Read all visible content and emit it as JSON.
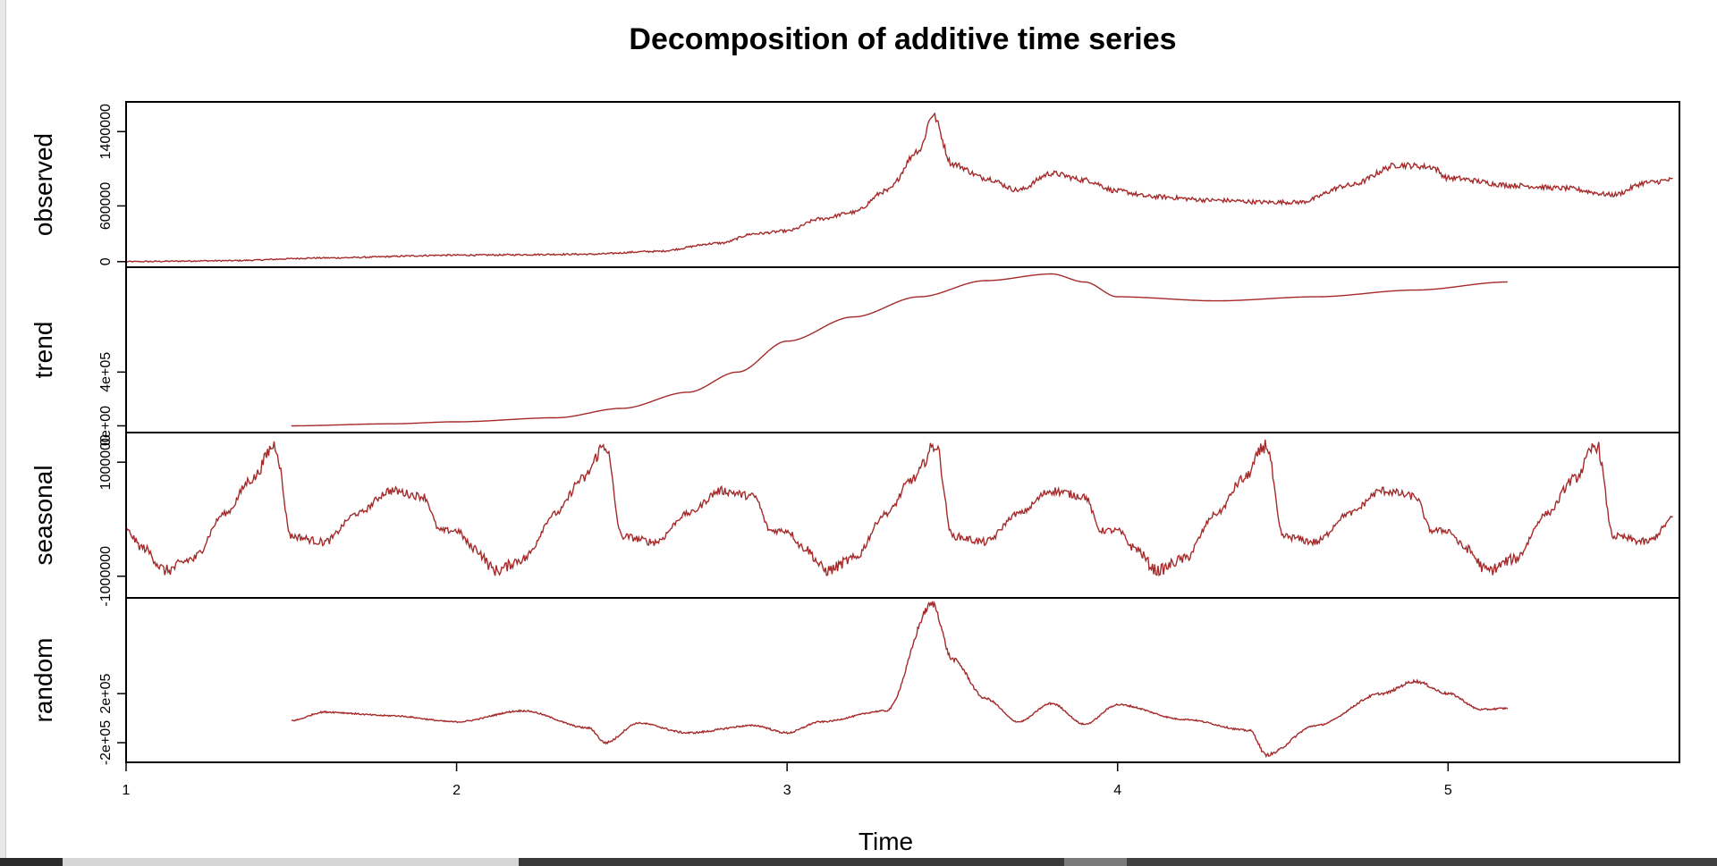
{
  "chart_data": {
    "type": "line",
    "title": "Decomposition of additive time series",
    "xlabel": "Time",
    "xlim": [
      1,
      5.7
    ],
    "x_ticks": [
      "1",
      "2",
      "3",
      "4",
      "5"
    ],
    "line_color": "#a52a2a",
    "panels": [
      {
        "name": "observed",
        "ylabel": "observed",
        "ylim": [
          -60000,
          1720000
        ],
        "y_ticks": [
          0,
          600000,
          1400000
        ],
        "y_tick_labels": [
          "0",
          "600000",
          "1400000"
        ],
        "x_range": [
          1,
          5.68
        ],
        "noise": 0.05,
        "knots": [
          [
            1,
            0
          ],
          [
            1.3,
            10000
          ],
          [
            1.6,
            40000
          ],
          [
            2,
            70000
          ],
          [
            2.4,
            80000
          ],
          [
            2.6,
            110000
          ],
          [
            2.8,
            200000
          ],
          [
            2.9,
            300000
          ],
          [
            3,
            330000
          ],
          [
            3.1,
            460000
          ],
          [
            3.2,
            530000
          ],
          [
            3.3,
            760000
          ],
          [
            3.4,
            1200000
          ],
          [
            3.44,
            1580000
          ],
          [
            3.5,
            1050000
          ],
          [
            3.6,
            900000
          ],
          [
            3.7,
            770000
          ],
          [
            3.8,
            950000
          ],
          [
            3.9,
            880000
          ],
          [
            4,
            760000
          ],
          [
            4.1,
            700000
          ],
          [
            4.3,
            660000
          ],
          [
            4.45,
            640000
          ],
          [
            4.55,
            640000
          ],
          [
            4.7,
            820000
          ],
          [
            4.85,
            1040000
          ],
          [
            4.95,
            1020000
          ],
          [
            5,
            900000
          ],
          [
            5.2,
            820000
          ],
          [
            5.35,
            790000
          ],
          [
            5.5,
            720000
          ],
          [
            5.6,
            850000
          ],
          [
            5.68,
            880000
          ]
        ]
      },
      {
        "name": "trend",
        "ylabel": "trend",
        "ylim": [
          -50000,
          1180000
        ],
        "y_ticks": [
          0,
          400000
        ],
        "y_tick_labels": [
          "0e+00",
          "4e+05"
        ],
        "x_range": [
          1.5,
          5.18
        ],
        "noise": 0,
        "knots": [
          [
            1.5,
            0
          ],
          [
            1.8,
            15000
          ],
          [
            2,
            30000
          ],
          [
            2.3,
            60000
          ],
          [
            2.5,
            130000
          ],
          [
            2.7,
            250000
          ],
          [
            2.85,
            400000
          ],
          [
            3,
            630000
          ],
          [
            3.2,
            810000
          ],
          [
            3.4,
            960000
          ],
          [
            3.6,
            1080000
          ],
          [
            3.8,
            1130000
          ],
          [
            3.9,
            1070000
          ],
          [
            4,
            960000
          ],
          [
            4.3,
            930000
          ],
          [
            4.6,
            960000
          ],
          [
            4.9,
            1010000
          ],
          [
            5.18,
            1070000
          ]
        ]
      },
      {
        "name": "seasonal",
        "ylabel": "seasonal",
        "ylim": [
          -1380000,
          1520000
        ],
        "y_ticks": [
          -1000000,
          1000000
        ],
        "y_tick_labels": [
          "-1000000",
          "1000000"
        ],
        "x_range": [
          1,
          5.68
        ],
        "noise": 0.07,
        "period": 1,
        "knots": [
          [
            0,
            -200000
          ],
          [
            0.05,
            -500000
          ],
          [
            0.12,
            -900000
          ],
          [
            0.2,
            -700000
          ],
          [
            0.3,
            100000
          ],
          [
            0.38,
            700000
          ],
          [
            0.45,
            1300000
          ],
          [
            0.5,
            -300000
          ],
          [
            0.6,
            -400000
          ],
          [
            0.7,
            100000
          ],
          [
            0.8,
            500000
          ],
          [
            0.9,
            400000
          ],
          [
            0.95,
            -200000
          ],
          [
            1,
            -200000
          ]
        ]
      },
      {
        "name": "random",
        "ylabel": "random",
        "ylim": [
          -360000,
          980000
        ],
        "y_ticks": [
          -200000,
          200000
        ],
        "y_tick_labels": [
          "-2e+05",
          "2e+05"
        ],
        "x_range": [
          1.5,
          5.18
        ],
        "noise": 0.05,
        "knots": [
          [
            1.5,
            -20000
          ],
          [
            1.6,
            50000
          ],
          [
            1.8,
            20000
          ],
          [
            2,
            -30000
          ],
          [
            2.2,
            60000
          ],
          [
            2.4,
            -80000
          ],
          [
            2.45,
            -200000
          ],
          [
            2.55,
            -40000
          ],
          [
            2.7,
            -120000
          ],
          [
            2.9,
            -60000
          ],
          [
            3,
            -120000
          ],
          [
            3.1,
            -30000
          ],
          [
            3.3,
            60000
          ],
          [
            3.44,
            930000
          ],
          [
            3.5,
            480000
          ],
          [
            3.6,
            160000
          ],
          [
            3.7,
            -30000
          ],
          [
            3.8,
            120000
          ],
          [
            3.9,
            -50000
          ],
          [
            4,
            110000
          ],
          [
            4.2,
            -10000
          ],
          [
            4.4,
            -100000
          ],
          [
            4.45,
            -300000
          ],
          [
            4.6,
            -60000
          ],
          [
            4.8,
            200000
          ],
          [
            4.9,
            300000
          ],
          [
            5,
            200000
          ],
          [
            5.1,
            70000
          ],
          [
            5.18,
            80000
          ]
        ]
      }
    ]
  }
}
